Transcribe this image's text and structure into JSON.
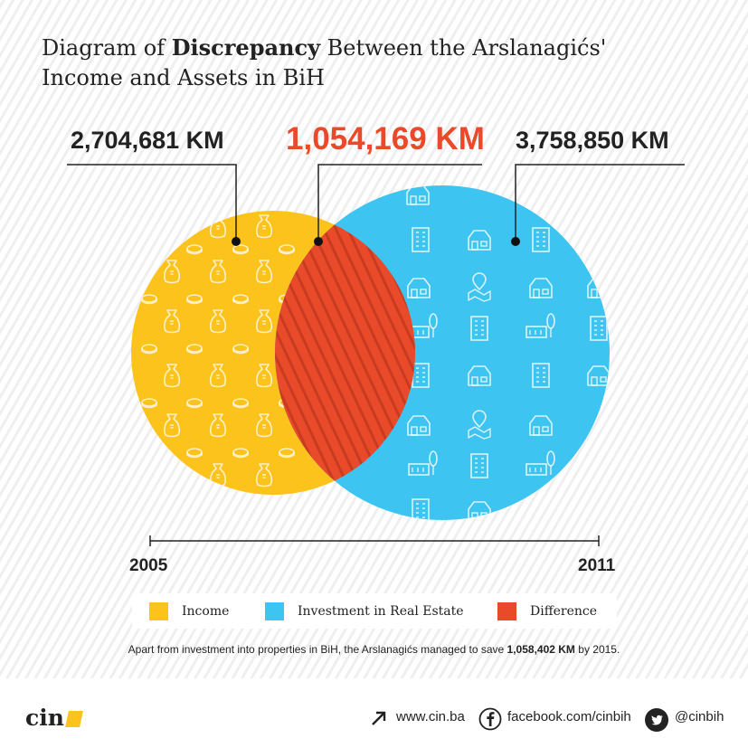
{
  "title": {
    "pre": "Diagram of ",
    "bold": "Discrepancy",
    "post": " Between the Arslanagićs' Income and Assets in BiH"
  },
  "values": {
    "income": "2,704,681 KM",
    "difference": "1,054,169 KM",
    "assets": "3,758,850 KM"
  },
  "timeline": {
    "start": "2005",
    "end": "2011"
  },
  "legend": [
    {
      "label": "Income",
      "color": "#fcc31d"
    },
    {
      "label": "Investment in Real Estate",
      "color": "#3ec4f1"
    },
    {
      "label": "Difference",
      "color": "#e84a2a"
    }
  ],
  "note": {
    "pre": "Apart from investment into properties in BiH, the Arslanagićs managed to save ",
    "bold": "1,058,402 KM",
    "post": " by 2015."
  },
  "footer": {
    "logo": "cin",
    "website": "www.cin.ba",
    "facebook": "facebook.com/cinbih",
    "twitter": "@cinbih"
  },
  "colors": {
    "accent": "#e84a2a",
    "income": "#fcc31d",
    "assets": "#3ec4f1",
    "text": "#222222"
  },
  "icons": [
    "money-bag-icon",
    "building-icon",
    "house-icon",
    "map-pin-icon",
    "tree-icon",
    "arrow-icon",
    "facebook-icon",
    "twitter-icon"
  ]
}
